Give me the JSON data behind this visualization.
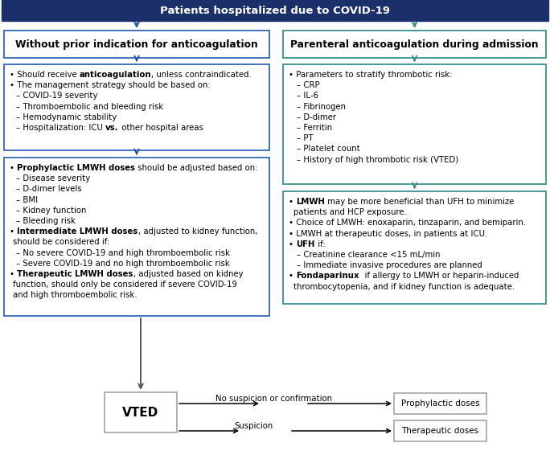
{
  "title": "Patients hospitalized due to COVID-19",
  "title_bg": "#1b2f6b",
  "title_color": "#ffffff",
  "arrow_left": "#2255aa",
  "arrow_right": "#3a9090",
  "border_left": "#3366bb",
  "border_right": "#3a9090",
  "border_gray": "#aaaaaa",
  "left_header": "Without prior indication for anticoagulation",
  "right_header": "Parenteral anticoagulation during admission"
}
